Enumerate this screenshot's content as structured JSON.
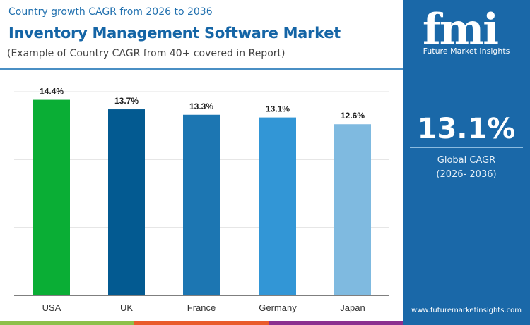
{
  "header": {
    "top": "Country growth CAGR from 2026 to 2036",
    "title": "Inventory Management Software Market",
    "subtitle": "(Example of Country CAGR from 40+ covered in Report)"
  },
  "panel": {
    "logo": "fmi",
    "logo_text": "Future Market Insights",
    "value": "13.1%",
    "label": "Global CAGR",
    "period": "(2026- 2036)",
    "url": "www.futuremarketinsights.com"
  },
  "chart_data": {
    "type": "bar",
    "categories": [
      "USA",
      "UK",
      "France",
      "Germany",
      "Japan"
    ],
    "values": [
      14.4,
      13.7,
      13.3,
      13.1,
      12.6
    ],
    "labels": [
      "14.4%",
      "13.7%",
      "13.3%",
      "13.1%",
      "12.6%"
    ],
    "colors": [
      "#0aae35",
      "#035a91",
      "#1c76b2",
      "#3296d6",
      "#7fbae0"
    ],
    "ylim": [
      0,
      15
    ],
    "gridlines": [
      5,
      10,
      15
    ],
    "grid": true
  },
  "stripe_colors": [
    "#8dc04a",
    "#e95b2b",
    "#8b2f8f"
  ]
}
